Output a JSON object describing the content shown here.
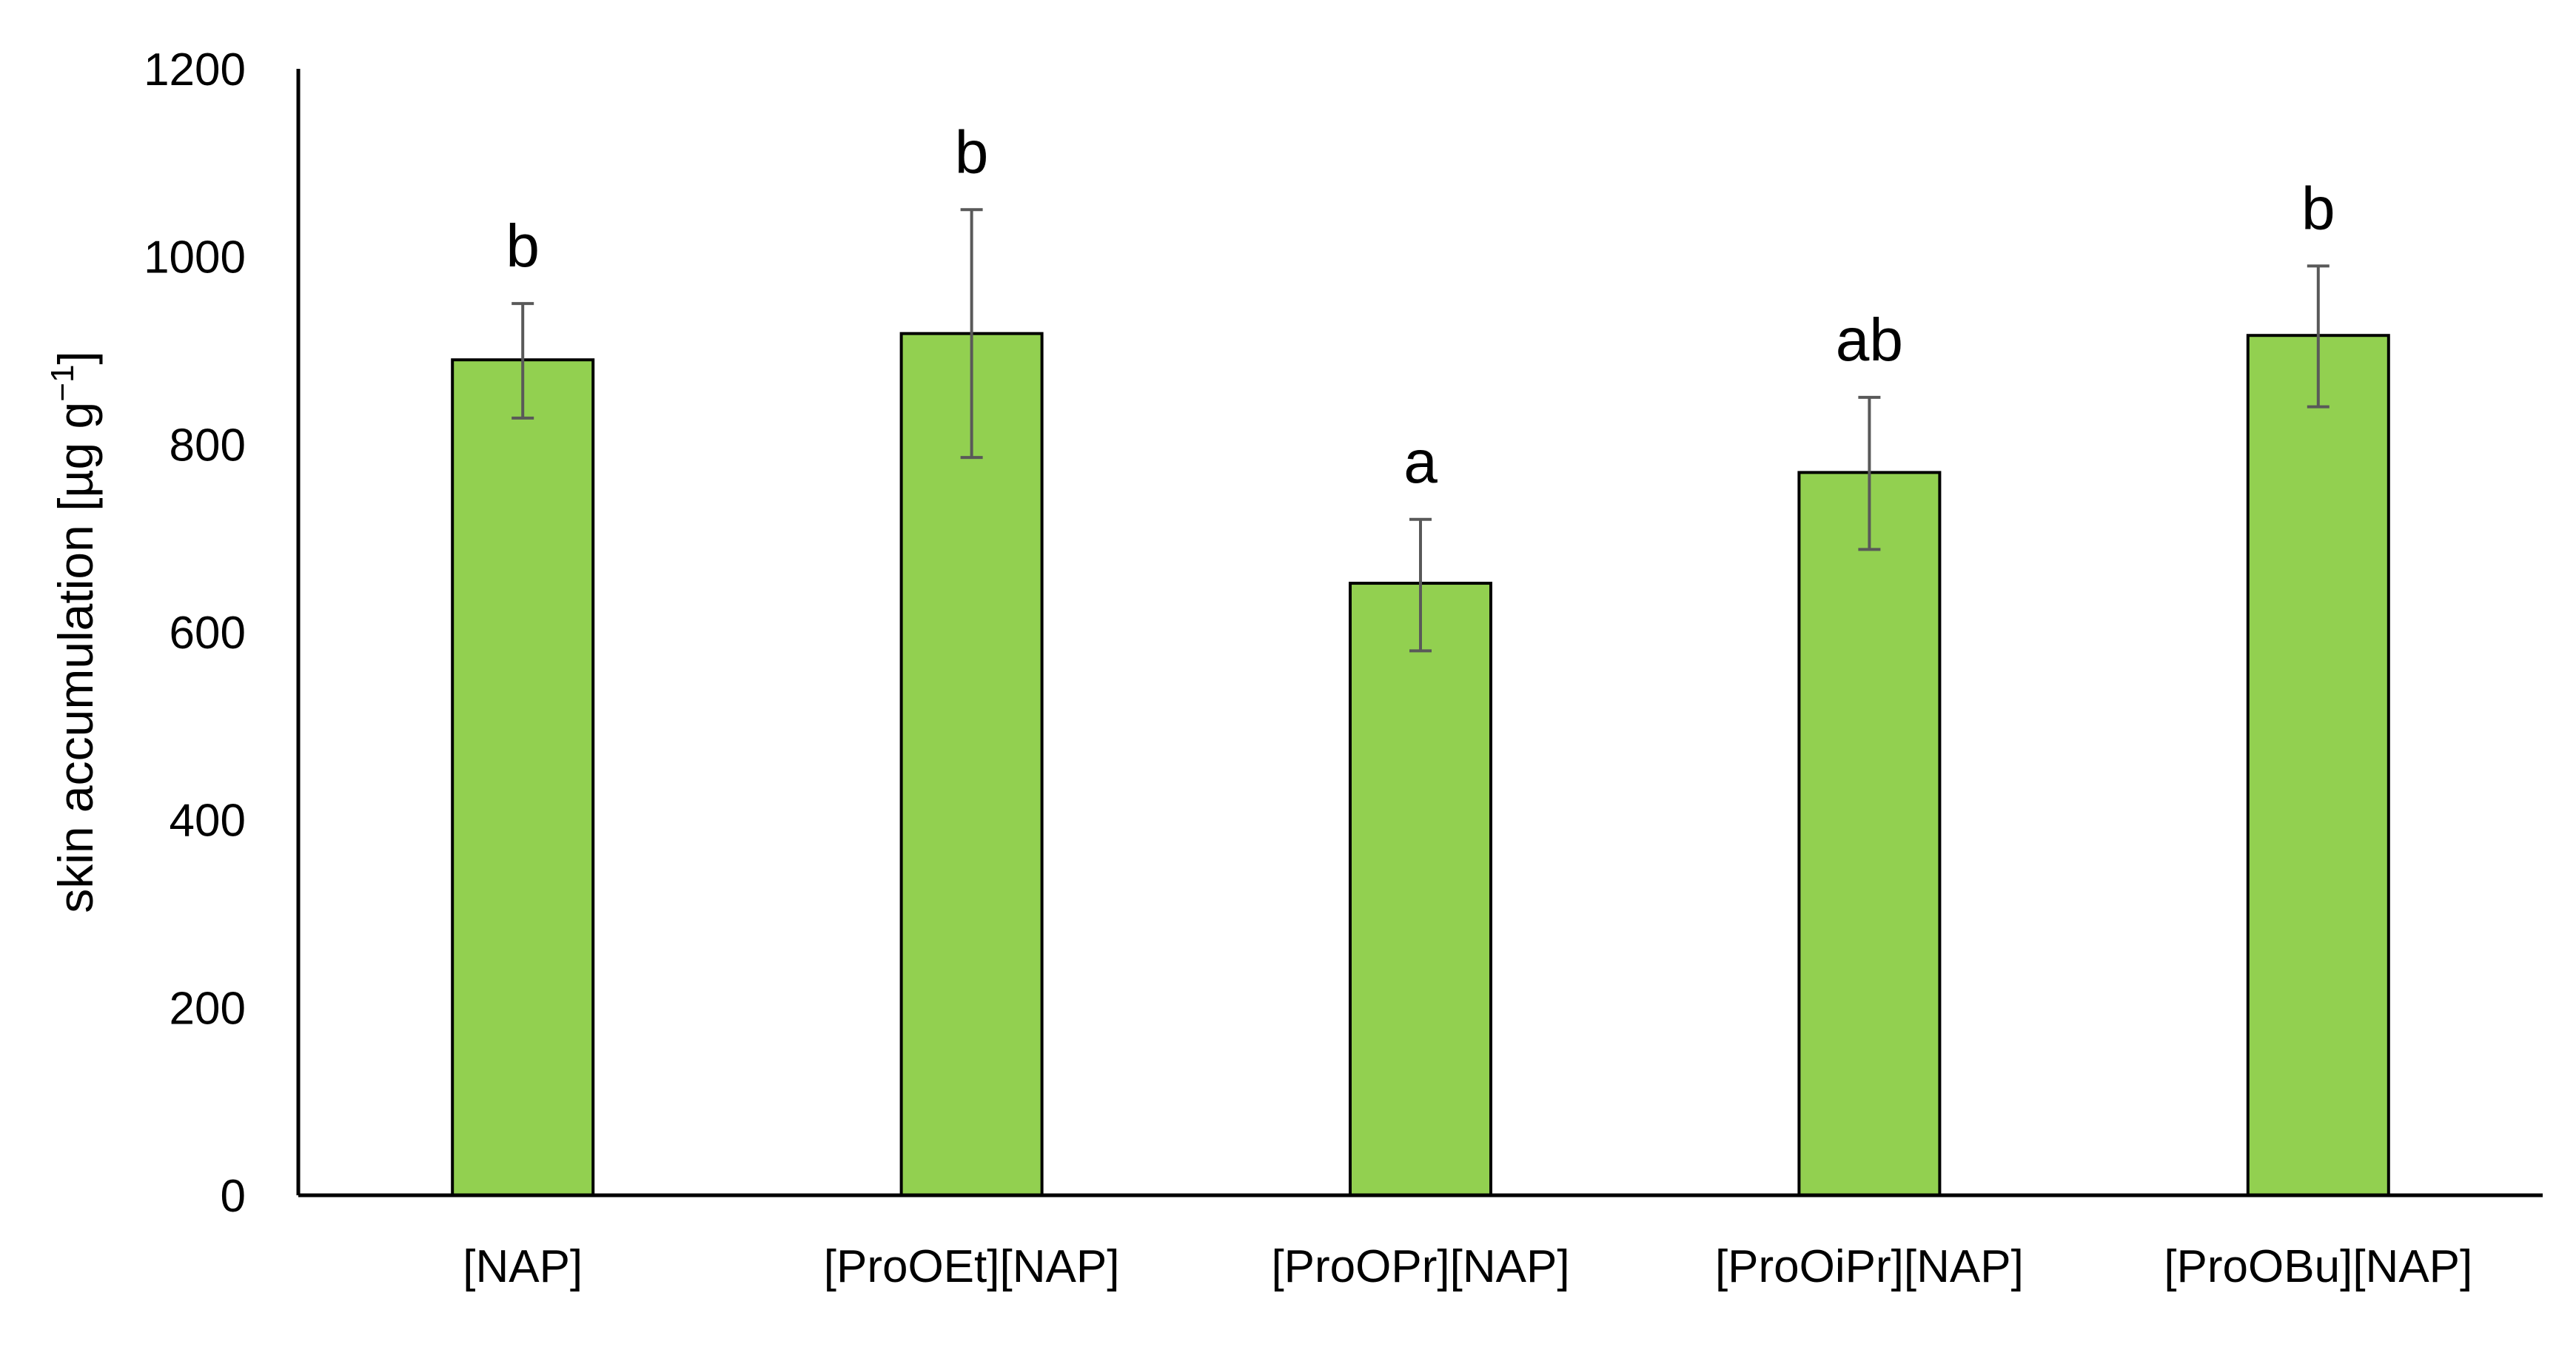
{
  "chart_data": {
    "type": "bar",
    "title": "",
    "xlabel": "",
    "ylabel_main": "skin accumulation [µg g",
    "ylabel_exp": "−1",
    "ylabel_close": "]",
    "ylim": [
      0,
      1200
    ],
    "yticks": [
      0,
      200,
      400,
      600,
      800,
      1000,
      1200
    ],
    "ytick_labels": [
      "0",
      "200",
      "400",
      "600",
      "800",
      "1000",
      "1200"
    ],
    "grid": false,
    "legend": "none",
    "categories": [
      "[NAP]",
      "[ProOEt][NAP]",
      "[ProOPr][NAP]",
      "[ProOiPr][NAP]",
      "[ProOBu][NAP]"
    ],
    "values": [
      890,
      918,
      652,
      770,
      916
    ],
    "error_low": [
      828,
      786,
      580,
      688,
      840
    ],
    "error_high": [
      950,
      1050,
      720,
      850,
      990
    ],
    "significance_labels": [
      "b",
      "b",
      "a",
      "ab",
      "b"
    ],
    "bar_color": "#92d050",
    "bar_edge_color": "#000000",
    "error_color": "#595959"
  }
}
